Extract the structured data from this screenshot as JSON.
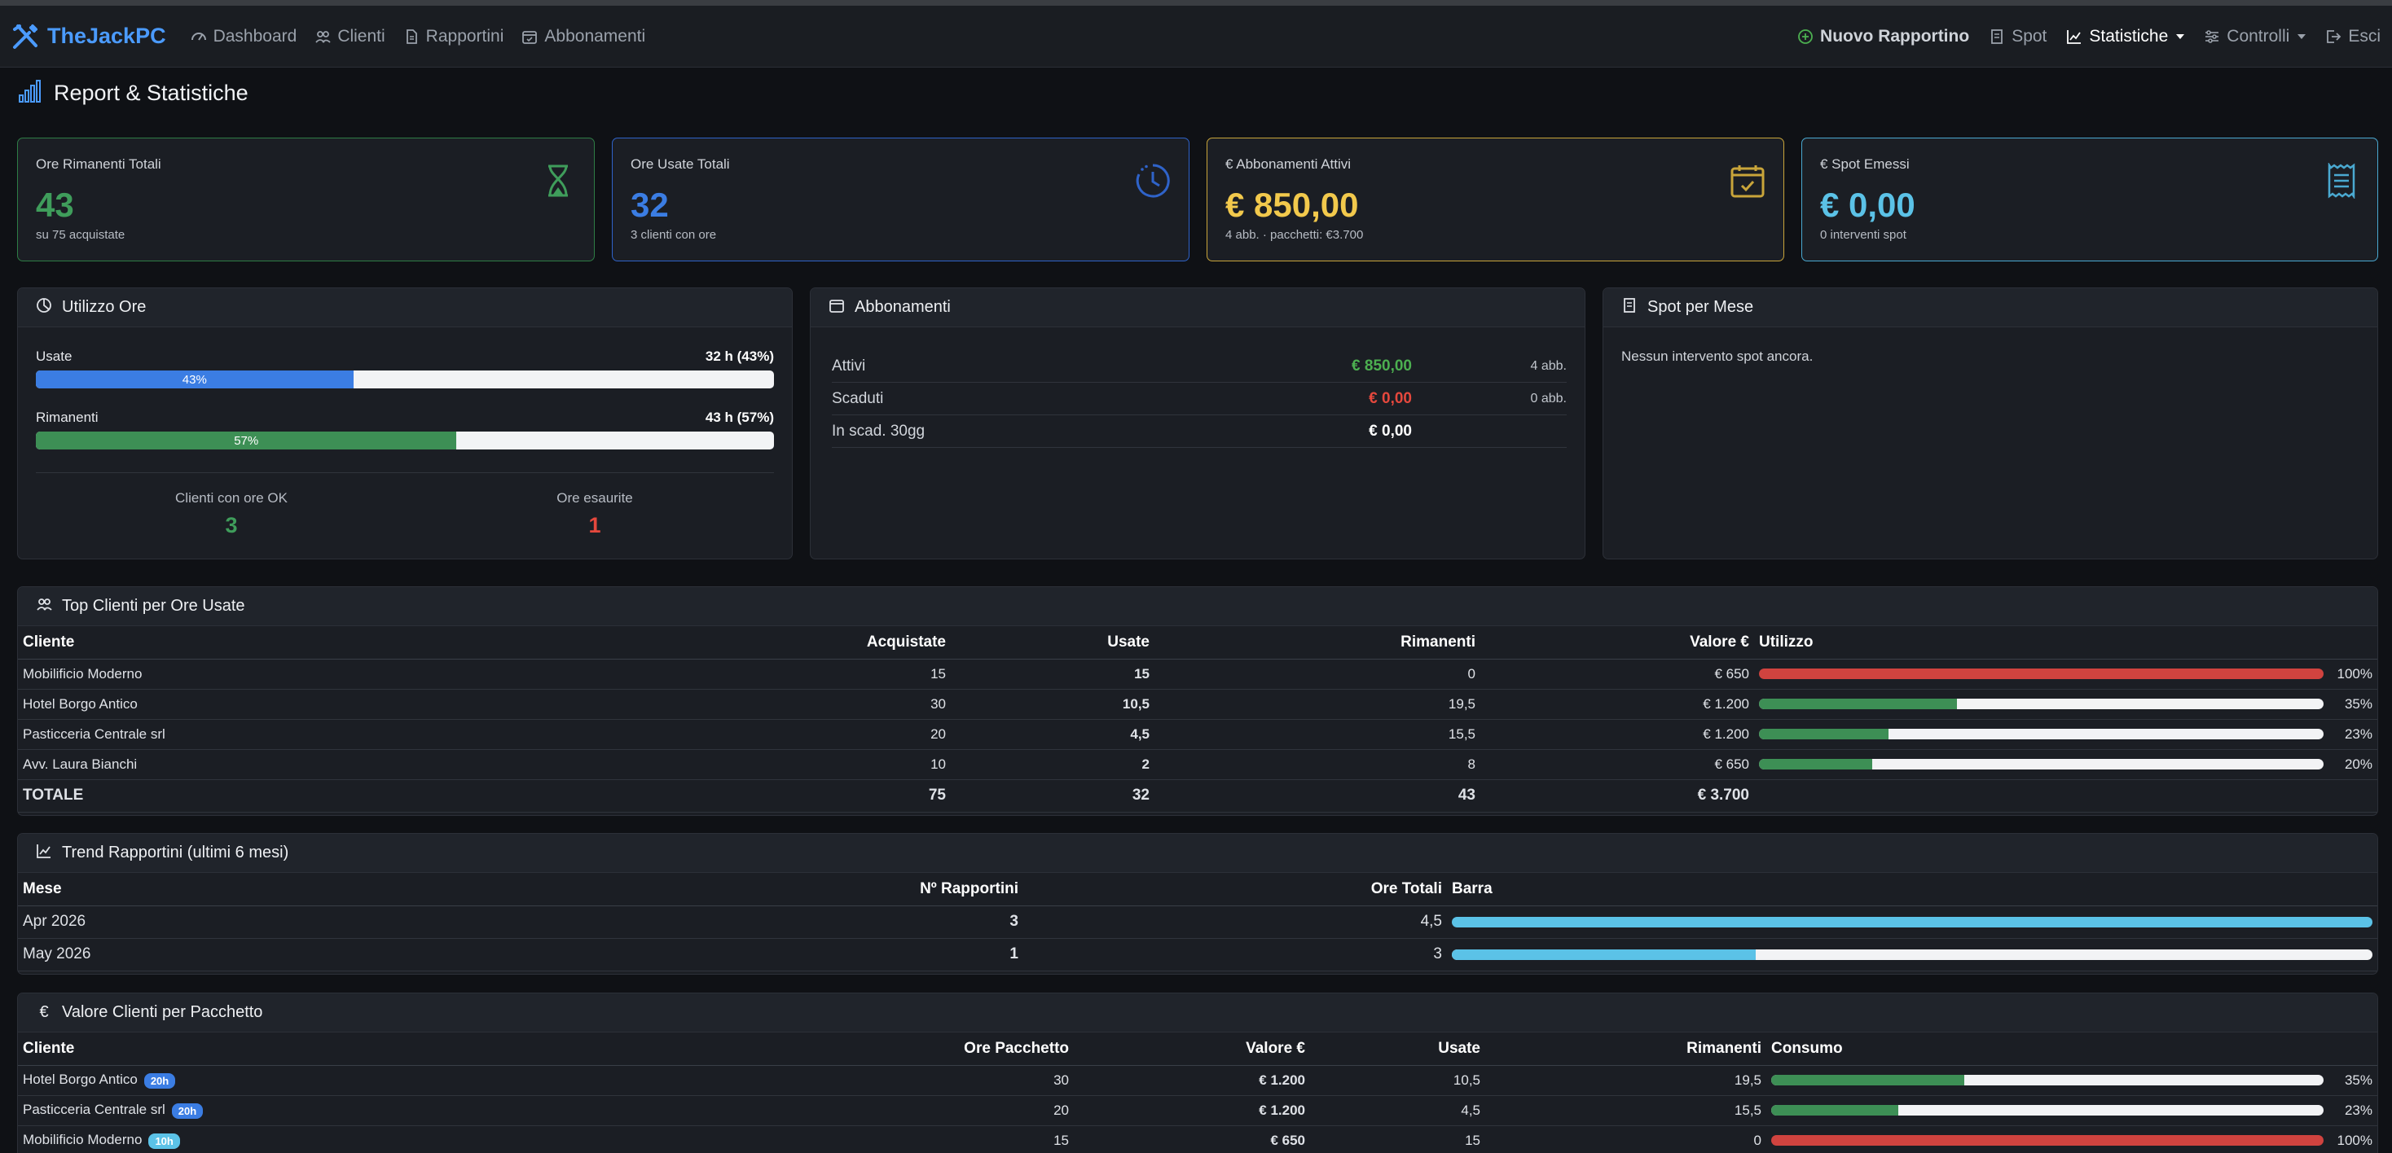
{
  "colors": {
    "accent_blue": "#3b7de3",
    "green": "#3d8f55",
    "red": "#d0433f",
    "yellow": "#f2c94c",
    "cyan": "#5bc2e7",
    "brand": "#4b9bff"
  },
  "navbar": {
    "brand": "TheJackPC",
    "left_items": [
      {
        "label": "Dashboard",
        "icon": "speedometer-icon"
      },
      {
        "label": "Clienti",
        "icon": "people-icon"
      },
      {
        "label": "Rapportini",
        "icon": "document-icon"
      },
      {
        "label": "Abbonamenti",
        "icon": "calendar-check-icon"
      }
    ],
    "right_items": {
      "new_report": "Nuovo Rapportino",
      "spot": "Spot",
      "statistiche": "Statistiche",
      "controlli": "Controlli",
      "esci": "Esci"
    }
  },
  "page": {
    "title": "Report & Statistiche"
  },
  "stats": [
    {
      "title": "Ore Rimanenti Totali",
      "value": "43",
      "sub": "su 75 acquistate",
      "icon": "hourglass-icon",
      "color": "green"
    },
    {
      "title": "Ore Usate Totali",
      "value": "32",
      "sub": "3 clienti con ore",
      "icon": "clock-icon",
      "color": "blue"
    },
    {
      "title": "€ Abbonamenti Attivi",
      "value": "€ 850,00",
      "sub": "4 abb. · pacchetti: €3.700",
      "icon": "calendar-check-icon",
      "color": "yellow"
    },
    {
      "title": "€ Spot Emessi",
      "value": "€ 0,00",
      "sub": "0 interventi spot",
      "icon": "receipt-icon",
      "color": "cyan"
    }
  ],
  "utilizzo": {
    "title": "Utilizzo Ore",
    "usate": {
      "label": "Usate",
      "value_text": "32 h (43%)",
      "percent": 43,
      "bar_text": "43%"
    },
    "rimanenti": {
      "label": "Rimanenti",
      "value_text": "43 h (57%)",
      "percent": 57,
      "bar_text": "57%"
    },
    "kpi_ok": {
      "label": "Clienti con ore OK",
      "value": "3"
    },
    "kpi_esaurite": {
      "label": "Ore esaurite",
      "value": "1"
    }
  },
  "abbonamenti": {
    "title": "Abbonamenti",
    "rows": [
      {
        "label": "Attivi",
        "amount": "€ 850,00",
        "count": "4 abb.",
        "tone": "green"
      },
      {
        "label": "Scaduti",
        "amount": "€ 0,00",
        "count": "0 abb.",
        "tone": "red"
      },
      {
        "label": "In scad. 30gg",
        "amount": "€ 0,00",
        "count": "",
        "tone": "white"
      }
    ]
  },
  "spot": {
    "title": "Spot per Mese",
    "empty": "Nessun intervento spot ancora."
  },
  "top_clienti": {
    "title": "Top Clienti per Ore Usate",
    "headers": [
      "Cliente",
      "Acquistate",
      "Usate",
      "Rimanenti",
      "Valore €",
      "Utilizzo"
    ],
    "rows": [
      {
        "cliente": "Mobilificio Moderno",
        "acquistate": "15",
        "usate": "15",
        "rimanenti": "0",
        "valore": "€ 650",
        "pct": 100,
        "pct_text": "100%",
        "tone": "red"
      },
      {
        "cliente": "Hotel Borgo Antico",
        "acquistate": "30",
        "usate": "10,5",
        "rimanenti": "19,5",
        "valore": "€ 1.200",
        "pct": 35,
        "pct_text": "35%",
        "tone": "green"
      },
      {
        "cliente": "Pasticceria Centrale srl",
        "acquistate": "20",
        "usate": "4,5",
        "rimanenti": "15,5",
        "valore": "€ 1.200",
        "pct": 23,
        "pct_text": "23%",
        "tone": "green"
      },
      {
        "cliente": "Avv. Laura Bianchi",
        "acquistate": "10",
        "usate": "2",
        "rimanenti": "8",
        "valore": "€ 650",
        "pct": 20,
        "pct_text": "20%",
        "tone": "green"
      }
    ],
    "total": {
      "label": "TOTALE",
      "acquistate": "75",
      "usate": "32",
      "rimanenti": "43",
      "valore": "€ 3.700"
    }
  },
  "trend": {
    "title": "Trend Rapportini (ultimi 6 mesi)",
    "headers": [
      "Mese",
      "Nº Rapportini",
      "Ore Totali",
      "Barra"
    ],
    "rows": [
      {
        "mese": "Apr 2026",
        "n": "3",
        "ore": "4,5",
        "pct": 100
      },
      {
        "mese": "May 2026",
        "n": "1",
        "ore": "3",
        "pct": 33
      }
    ]
  },
  "valore_clienti": {
    "title": "Valore Clienti per Pacchetto",
    "headers": [
      "Cliente",
      "Ore Pacchetto",
      "Valore €",
      "Usate",
      "Rimanenti",
      "Consumo"
    ],
    "rows": [
      {
        "cliente": "Hotel Borgo Antico",
        "badge": "20h",
        "ore": "30",
        "valore": "€ 1.200",
        "usate": "10,5",
        "rimanenti": "19,5",
        "pct": 35,
        "pct_text": "35%",
        "tone": "green"
      },
      {
        "cliente": "Pasticceria Centrale srl",
        "badge": "20h",
        "ore": "20",
        "valore": "€ 1.200",
        "usate": "4,5",
        "rimanenti": "15,5",
        "pct": 23,
        "pct_text": "23%",
        "tone": "green"
      },
      {
        "cliente": "Mobilificio Moderno",
        "badge": "10h",
        "ore": "15",
        "valore": "€ 650",
        "usate": "15",
        "rimanenti": "0",
        "pct": 100,
        "pct_text": "100%",
        "tone": "red"
      }
    ]
  }
}
